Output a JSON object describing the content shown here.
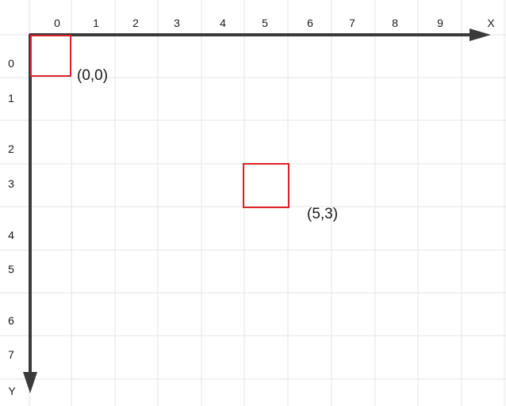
{
  "x_axis": {
    "label": "X",
    "ticks": [
      "0",
      "1",
      "2",
      "3",
      "4",
      "5",
      "6",
      "7",
      "8",
      "9"
    ]
  },
  "y_axis": {
    "label": "Y",
    "ticks": [
      "0",
      "1",
      "2",
      "3",
      "4",
      "5",
      "6",
      "7"
    ]
  },
  "markers": [
    {
      "cell": [
        0,
        0
      ],
      "label": "(0,0)"
    },
    {
      "cell": [
        5,
        3
      ],
      "label": "(5,3)"
    }
  ],
  "colors": {
    "grid": "#e6e6e6",
    "axis": "#3a3a3a",
    "marker": "#e0202a"
  }
}
